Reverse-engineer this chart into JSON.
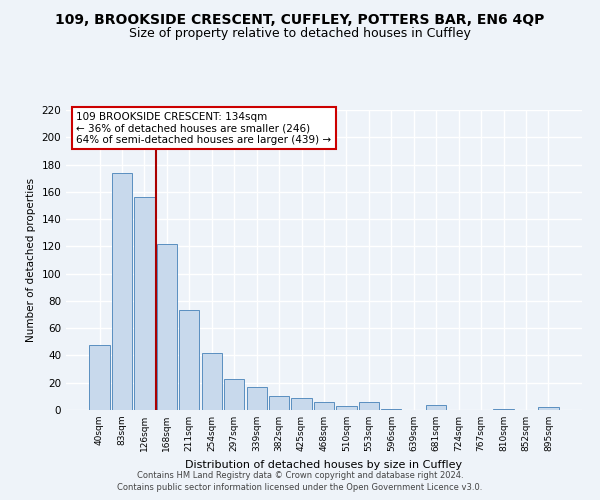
{
  "title": "109, BROOKSIDE CRESCENT, CUFFLEY, POTTERS BAR, EN6 4QP",
  "subtitle": "Size of property relative to detached houses in Cuffley",
  "xlabel": "Distribution of detached houses by size in Cuffley",
  "ylabel": "Number of detached properties",
  "bar_labels": [
    "40sqm",
    "83sqm",
    "126sqm",
    "168sqm",
    "211sqm",
    "254sqm",
    "297sqm",
    "339sqm",
    "382sqm",
    "425sqm",
    "468sqm",
    "510sqm",
    "553sqm",
    "596sqm",
    "639sqm",
    "681sqm",
    "724sqm",
    "767sqm",
    "810sqm",
    "852sqm",
    "895sqm"
  ],
  "bar_values": [
    48,
    174,
    156,
    122,
    73,
    42,
    23,
    17,
    10,
    9,
    6,
    3,
    6,
    1,
    0,
    4,
    0,
    0,
    1,
    0,
    2
  ],
  "bar_color": "#c8d9ec",
  "bar_edgecolor": "#5a8fc0",
  "vline_color": "#aa0000",
  "annotation_line1": "109 BROOKSIDE CRESCENT: 134sqm",
  "annotation_line2": "← 36% of detached houses are smaller (246)",
  "annotation_line3": "64% of semi-detached houses are larger (439) →",
  "annotation_box_color": "#ffffff",
  "annotation_box_edge": "#cc0000",
  "ylim": [
    0,
    220
  ],
  "yticks": [
    0,
    20,
    40,
    60,
    80,
    100,
    120,
    140,
    160,
    180,
    200,
    220
  ],
  "footer1": "Contains HM Land Registry data © Crown copyright and database right 2024.",
  "footer2": "Contains public sector information licensed under the Open Government Licence v3.0.",
  "bg_color": "#eef3f9",
  "grid_color": "#ffffff",
  "title_fontsize": 10,
  "subtitle_fontsize": 9
}
